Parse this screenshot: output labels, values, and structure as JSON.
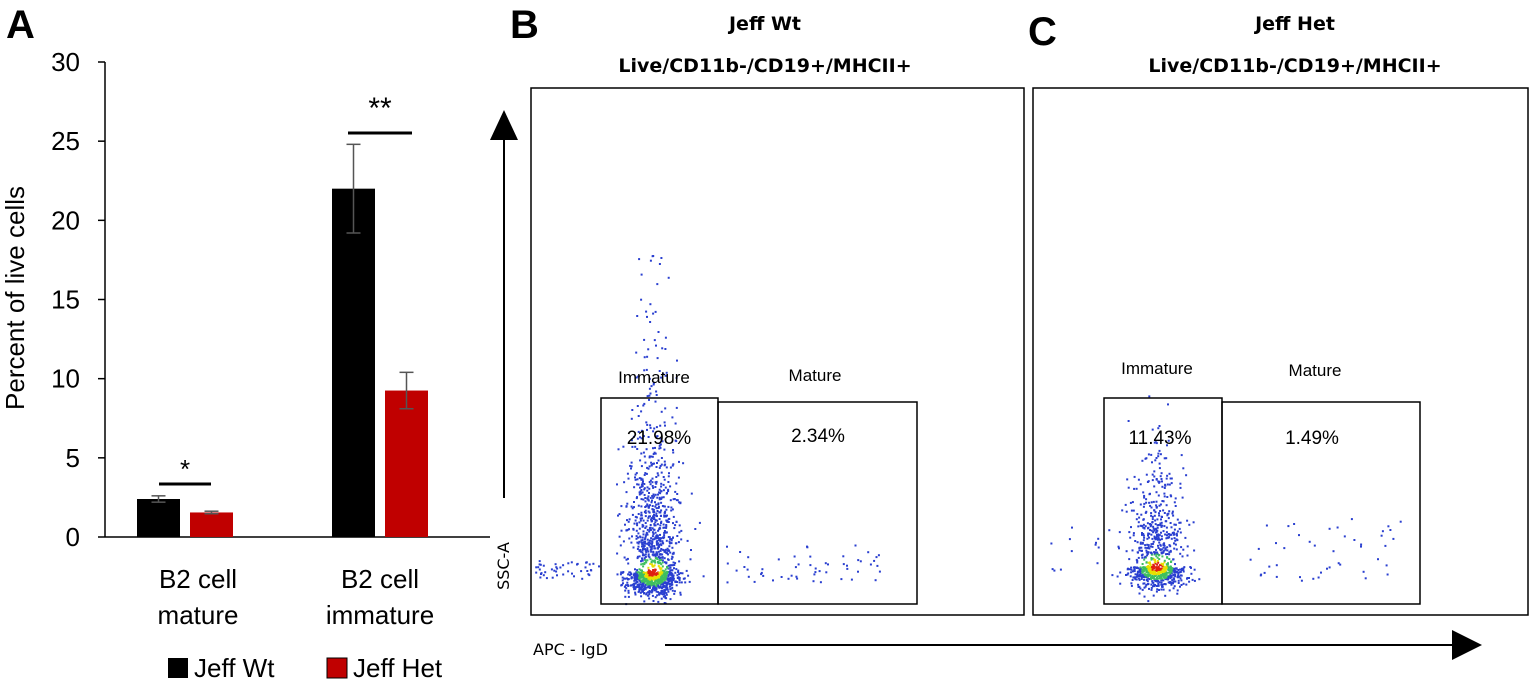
{
  "panel_labels": {
    "a": "A",
    "b": "B",
    "c": "C"
  },
  "colors": {
    "wt": "#000000",
    "het": "#c00000",
    "dot_low": "#2a3fd0",
    "dot_mid": "#3fbf5f",
    "dot_high": "#e8e000",
    "dot_peak": "#e02010"
  },
  "chart_data": [
    {
      "type": "bar",
      "panel": "A",
      "title": "",
      "ylabel": "Percent of live cells",
      "xlabel": "",
      "ylim": [
        0,
        30
      ],
      "yticks": [
        0,
        5,
        10,
        15,
        20,
        25,
        30
      ],
      "categories": [
        {
          "line1": "B2 cell",
          "line2": "mature"
        },
        {
          "line1": "B2 cell",
          "line2": "immature"
        }
      ],
      "series": [
        {
          "name": "Jeff Wt",
          "color": "#000000",
          "values": [
            2.4,
            22.0
          ],
          "errors": [
            0.2,
            2.8
          ]
        },
        {
          "name": "Jeff Het",
          "color": "#c00000",
          "values": [
            1.55,
            9.25
          ],
          "errors": [
            0.08,
            1.15
          ]
        }
      ],
      "significance": [
        "*",
        "**"
      ],
      "legend": [
        "Jeff Wt",
        "Jeff Het"
      ]
    },
    {
      "type": "scatter",
      "panel": "B",
      "title_line1": "Jeff Wt",
      "title_line2": "Live/CD11b-/CD19+/MHCII+",
      "gates": [
        {
          "label": "Immature",
          "percent": "21.98%"
        },
        {
          "label": "Mature",
          "percent": "2.34%"
        }
      ]
    },
    {
      "type": "scatter",
      "panel": "C",
      "title_line1": "Jeff Het",
      "title_line2": "Live/CD11b-/CD19+/MHCII+",
      "gates": [
        {
          "label": "Immature",
          "percent": "11.43%"
        },
        {
          "label": "Mature",
          "percent": "1.49%"
        }
      ]
    }
  ],
  "axes": {
    "y_label": "SSC-A",
    "x_label": "APC - IgD"
  }
}
